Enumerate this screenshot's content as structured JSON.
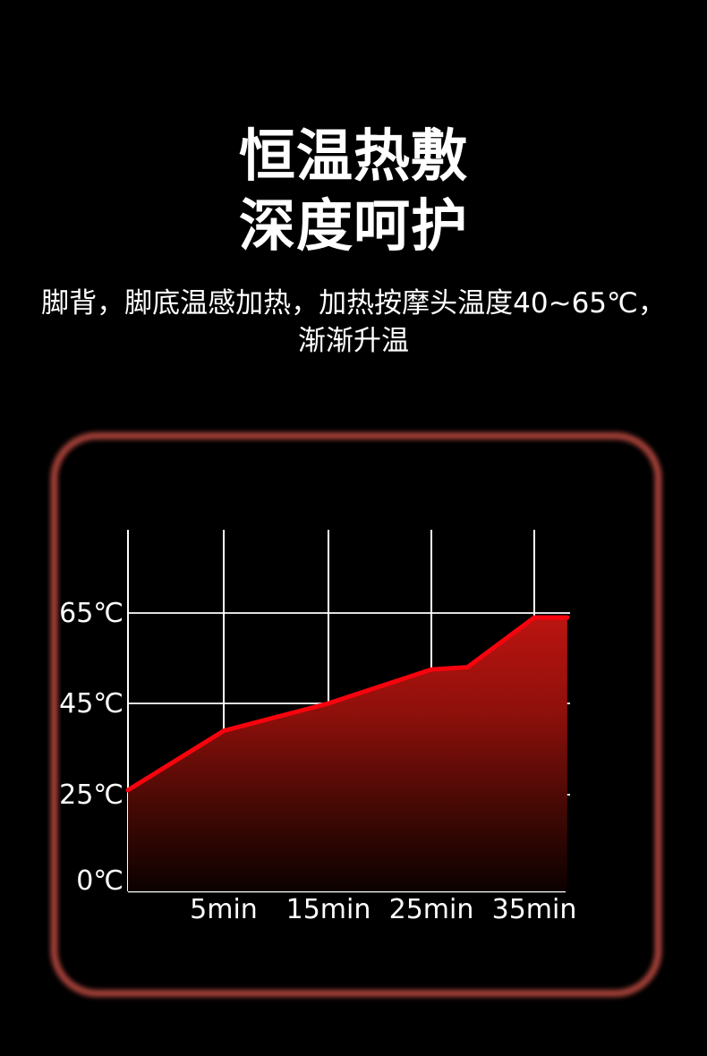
{
  "title": {
    "line1": "恒温热敷",
    "line2": "深度呵护"
  },
  "subtitle": {
    "line1": "脚背，脚底温感加热，加热按摩头温度40~65℃，",
    "line2": "渐渐升温"
  },
  "colors": {
    "background": "#000000",
    "text": "#ffffff",
    "panel_border": "#a33f38",
    "grid": "#ffffff",
    "line": "#f7030e",
    "fill_top": "#bb1410",
    "fill_mid": "#8e100b",
    "fill_low": "#3f0804",
    "fill_bottom": "#0b0100"
  },
  "chart_data": {
    "type": "area",
    "title": "",
    "xlabel": "",
    "ylabel": "",
    "x_unit": "min",
    "y_unit": "℃",
    "x_ticks": [
      {
        "min": 5,
        "label": "5min"
      },
      {
        "min": 15,
        "label": "15min"
      },
      {
        "min": 25,
        "label": "25min"
      },
      {
        "min": 35,
        "label": "35min"
      }
    ],
    "y_ticks": [
      {
        "value": 0,
        "label": "0℃"
      },
      {
        "value": 25,
        "label": "25℃"
      },
      {
        "value": 45,
        "label": "45℃"
      },
      {
        "value": 65,
        "label": "65℃"
      }
    ],
    "series": [
      {
        "name": "加热按摩头温度",
        "points": [
          [
            0,
            26
          ],
          [
            5,
            39
          ],
          [
            15,
            45
          ],
          [
            25,
            52.5
          ],
          [
            28.5,
            53
          ],
          [
            35,
            64
          ],
          [
            38.2,
            64
          ]
        ]
      }
    ],
    "xlim": [
      0,
      38.2
    ],
    "ylim": [
      0,
      83
    ],
    "grid": true,
    "legend_position": "none"
  }
}
